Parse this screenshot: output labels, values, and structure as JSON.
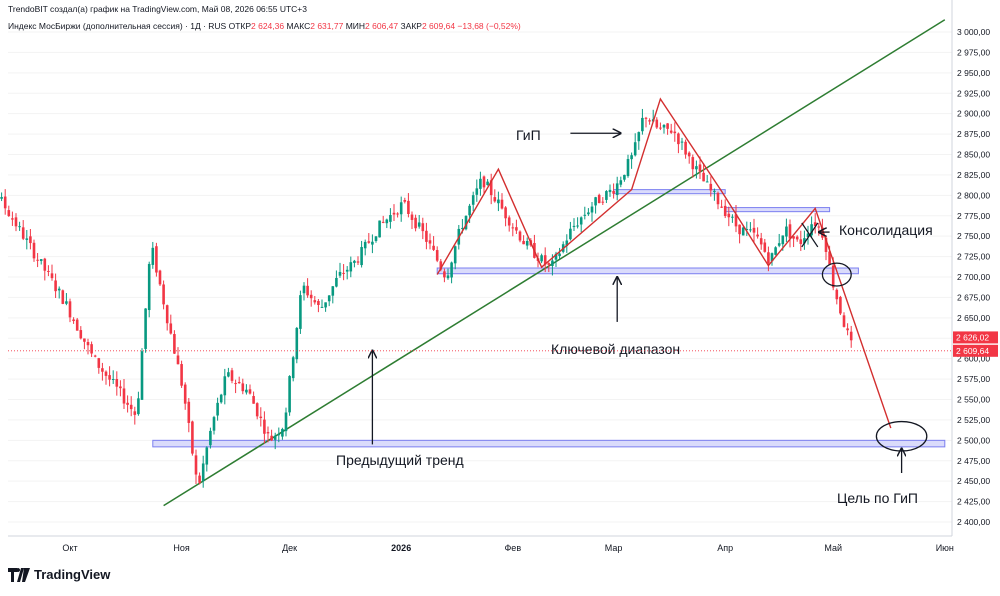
{
  "header": {
    "credit": "TrendoBIT создал(а) график на TradingView.com, Май 08, 2026 06:55 UTC+3",
    "instrument": "Индекс МосБиржи (дополнительная сессия) · 1Д · RUS",
    "open_label": "ОТКР",
    "open_value": "2 624,36",
    "high_label": "МАКС",
    "high_value": "2 631,77",
    "low_label": "МИН",
    "low_value": "2 606,47",
    "close_label": "ЗАКР",
    "close_value": "2 609,64",
    "change_value": "−13,68 (−0,52%)"
  },
  "price_tags": [
    {
      "text": "2 626,02",
      "value": 2626.02,
      "color": "#f23645"
    },
    {
      "text": "2 609,64",
      "value": 2609.64,
      "color": "#f23645"
    }
  ],
  "annotations": {
    "hip": "ГиП",
    "consolidation": "Консолидация",
    "key_range": "Ключевой диапазон",
    "prev_trend": "Предыдущий тренд",
    "target": "Цель по ГиП"
  },
  "logo_text": "TradingView",
  "chart_data": {
    "type": "candlestick",
    "title": "",
    "ylim": [
      2400,
      3015
    ],
    "y_ticks": [
      "3 000,00",
      "2 975,00",
      "2 950,00",
      "2 925,00",
      "2 900,00",
      "2 875,00",
      "2 850,00",
      "2 825,00",
      "2 800,00",
      "2 775,00",
      "2 750,00",
      "2 725,00",
      "2 700,00",
      "2 675,00",
      "2 650,00",
      "2 625,00",
      "2 600,00",
      "2 575,00",
      "2 550,00",
      "2 525,00",
      "2 500,00",
      "2 475,00",
      "2 450,00",
      "2 425,00",
      "2 400,00"
    ],
    "y_tick_values": [
      3000,
      2975,
      2950,
      2925,
      2900,
      2875,
      2850,
      2825,
      2800,
      2775,
      2750,
      2725,
      2700,
      2675,
      2650,
      2625,
      2600,
      2575,
      2550,
      2525,
      2500,
      2475,
      2450,
      2425,
      2400
    ],
    "x_ticks": [
      {
        "label": "Окт",
        "date": "2025-10-01"
      },
      {
        "label": "Ноя",
        "date": "2025-11-01"
      },
      {
        "label": "Дек",
        "date": "2025-12-01"
      },
      {
        "label": "2026",
        "date": "2026-01-01"
      },
      {
        "label": "Фев",
        "date": "2026-02-01"
      },
      {
        "label": "Мар",
        "date": "2026-03-01"
      },
      {
        "label": "Апр",
        "date": "2026-04-01"
      },
      {
        "label": "Май",
        "date": "2026-05-01"
      },
      {
        "label": "Июн",
        "date": "2026-06-01"
      }
    ],
    "colors": {
      "up": "#089981",
      "down": "#f23645",
      "trend": "#2e7d32",
      "pattern": "#d32f2f",
      "zone": "#7b7ff0"
    },
    "price_path": [
      [
        "2025-09-01",
        2840
      ],
      [
        "2025-09-10",
        2810
      ],
      [
        "2025-09-20",
        2740
      ],
      [
        "2025-09-30",
        2670
      ],
      [
        "2025-10-08",
        2600
      ],
      [
        "2025-10-15",
        2560
      ],
      [
        "2025-10-20",
        2530
      ],
      [
        "2025-10-24",
        2740
      ],
      [
        "2025-10-28",
        2660
      ],
      [
        "2025-11-02",
        2560
      ],
      [
        "2025-11-06",
        2440
      ],
      [
        "2025-11-10",
        2520
      ],
      [
        "2025-11-14",
        2580
      ],
      [
        "2025-11-20",
        2560
      ],
      [
        "2025-11-26",
        2500
      ],
      [
        "2025-11-30",
        2520
      ],
      [
        "2025-12-02",
        2590
      ],
      [
        "2025-12-05",
        2690
      ],
      [
        "2025-12-10",
        2660
      ],
      [
        "2025-12-15",
        2700
      ],
      [
        "2025-12-20",
        2720
      ],
      [
        "2025-12-26",
        2760
      ],
      [
        "2026-01-02",
        2790
      ],
      [
        "2026-01-08",
        2750
      ],
      [
        "2026-01-14",
        2700
      ],
      [
        "2026-01-18",
        2760
      ],
      [
        "2026-01-24",
        2820
      ],
      [
        "2026-01-30",
        2780
      ],
      [
        "2026-02-05",
        2740
      ],
      [
        "2026-02-12",
        2710
      ],
      [
        "2026-02-18",
        2760
      ],
      [
        "2026-02-24",
        2790
      ],
      [
        "2026-03-02",
        2810
      ],
      [
        "2026-03-07",
        2850
      ],
      [
        "2026-03-10",
        2900
      ],
      [
        "2026-03-14",
        2880
      ],
      [
        "2026-03-18",
        2880
      ],
      [
        "2026-03-22",
        2850
      ],
      [
        "2026-03-26",
        2820
      ],
      [
        "2026-03-31",
        2790
      ],
      [
        "2026-04-05",
        2760
      ],
      [
        "2026-04-10",
        2750
      ],
      [
        "2026-04-14",
        2720
      ],
      [
        "2026-04-18",
        2760
      ],
      [
        "2026-04-22",
        2740
      ],
      [
        "2026-04-26",
        2770
      ],
      [
        "2026-04-29",
        2750
      ],
      [
        "2026-05-01",
        2700
      ],
      [
        "2026-05-04",
        2650
      ],
      [
        "2026-05-07",
        2609.64
      ]
    ],
    "drawings": {
      "trend_line": [
        [
          "2025-10-27",
          2420
        ],
        [
          "2026-06-01",
          3015
        ]
      ],
      "hip_zigzag": [
        [
          "2026-01-11",
          2703
        ],
        [
          "2026-01-28",
          2832
        ],
        [
          "2026-02-09",
          2712
        ],
        [
          "2026-03-06",
          2807
        ],
        [
          "2026-03-14",
          2918
        ],
        [
          "2026-03-31",
          2805
        ],
        [
          "2026-04-13",
          2714
        ],
        [
          "2026-04-26",
          2784
        ],
        [
          "2026-05-17",
          2515
        ]
      ],
      "consolidation_cross": [
        [
          "2026-04-22",
          2760
        ],
        [
          "2026-04-27",
          2743
        ]
      ],
      "zones": [
        {
          "from": "2025-10-24",
          "to": "2026-06-01",
          "low": 2492,
          "high": 2500
        },
        {
          "from": "2026-01-11",
          "to": "2026-05-08",
          "low": 2704,
          "high": 2711
        },
        {
          "from": "2026-03-01",
          "to": "2026-04-01",
          "low": 2802,
          "high": 2807
        },
        {
          "from": "2026-04-01",
          "to": "2026-04-30",
          "low": 2780,
          "high": 2785
        }
      ],
      "ellipses": [
        {
          "date": "2026-05-02",
          "value": 2703,
          "rx_days": 4,
          "ry_value": 14
        },
        {
          "date": "2026-05-20",
          "value": 2505,
          "rx_days": 7,
          "ry_value": 18
        }
      ],
      "arrows": [
        {
          "from": [
            "2026-02-17",
            2876
          ],
          "to": [
            "2026-03-03",
            2876
          ]
        },
        {
          "from": [
            "2026-04-30",
            2755
          ],
          "to": [
            "2026-04-27",
            2755
          ]
        },
        {
          "from": [
            "2026-03-02",
            2645
          ],
          "to": [
            "2026-03-02",
            2700
          ]
        },
        {
          "from": [
            "2025-12-24",
            2495
          ],
          "to": [
            "2025-12-24",
            2610
          ]
        },
        {
          "from": [
            "2026-05-20",
            2460
          ],
          "to": [
            "2026-05-20",
            2490
          ]
        }
      ]
    }
  }
}
